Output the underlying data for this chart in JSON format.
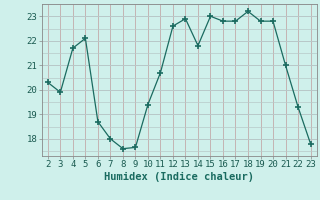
{
  "x": [
    2,
    3,
    4,
    5,
    6,
    7,
    8,
    9,
    10,
    11,
    12,
    13,
    14,
    15,
    16,
    17,
    18,
    19,
    20,
    21,
    22,
    23
  ],
  "y": [
    20.3,
    19.9,
    21.7,
    22.1,
    18.7,
    18.0,
    17.6,
    17.65,
    19.4,
    20.7,
    22.6,
    22.9,
    21.8,
    23.0,
    22.8,
    22.8,
    23.2,
    22.8,
    22.8,
    21.0,
    19.3,
    17.8
  ],
  "line_color": "#1a6b60",
  "marker": "+",
  "marker_size": 4,
  "marker_lw": 1.2,
  "bg_color": "#cff0eb",
  "grid_color_major": "#b8c8c8",
  "grid_color_minor": "#d4e8e4",
  "xlabel": "Humidex (Indice chaleur)",
  "xlim": [
    1.5,
    23.5
  ],
  "ylim": [
    17.3,
    23.5
  ],
  "yticks": [
    18,
    19,
    20,
    21,
    22,
    23
  ],
  "xticks": [
    2,
    3,
    4,
    5,
    6,
    7,
    8,
    9,
    10,
    11,
    12,
    13,
    14,
    15,
    16,
    17,
    18,
    19,
    20,
    21,
    22,
    23
  ],
  "label_fontsize": 7.5,
  "tick_fontsize": 6.5
}
